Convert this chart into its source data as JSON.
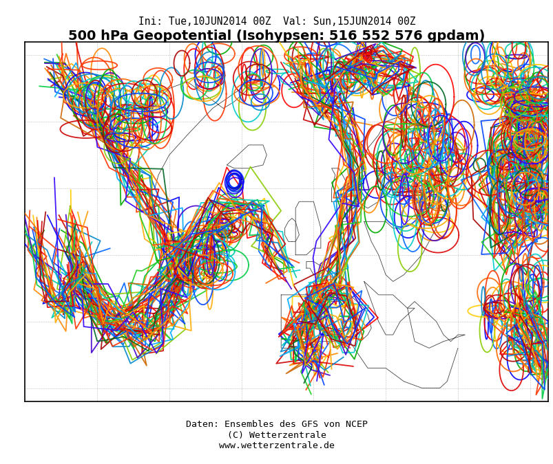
{
  "title_line1": "Ini: Tue,10JUN2014 00Z  Val: Sun,15JUN2014 00Z",
  "title_line2": "500 hPa Geopotential (Isohypsen: 516 552 576 gpdam)",
  "footer_lines": [
    "Daten: Ensembles des GFS von NCEP",
    "(C) Wetterzentrale",
    "www.wetterzentrale.de"
  ],
  "background_color": "#ffffff",
  "title1_fontsize": 10.5,
  "title2_fontsize": 14,
  "footer_fontsize": 9.5,
  "lw": 1.3,
  "n_members": 28,
  "colors": [
    "#0000ff",
    "#ff0000",
    "#00aa00",
    "#ff8800",
    "#00cccc",
    "#ffcc00",
    "#cc0000",
    "#0066ff",
    "#88cc00",
    "#ff4400",
    "#00ccaa",
    "#ff6600",
    "#4400cc",
    "#ff3300",
    "#00cc44",
    "#dd0000",
    "#0088cc",
    "#ffaa00",
    "#aa0000",
    "#0044ff",
    "#22cc22",
    "#ff2200",
    "#00aaff",
    "#cc6600",
    "#006622",
    "#ff3300",
    "#3300ff",
    "#ff9900",
    "#009900",
    "#cc3300"
  ],
  "map_extent": [
    -80,
    65,
    28,
    82
  ],
  "graticule_lats": [
    30,
    40,
    50,
    60,
    70,
    80
  ],
  "graticule_lons": [
    -80,
    -60,
    -40,
    -20,
    0,
    20,
    40,
    60
  ]
}
